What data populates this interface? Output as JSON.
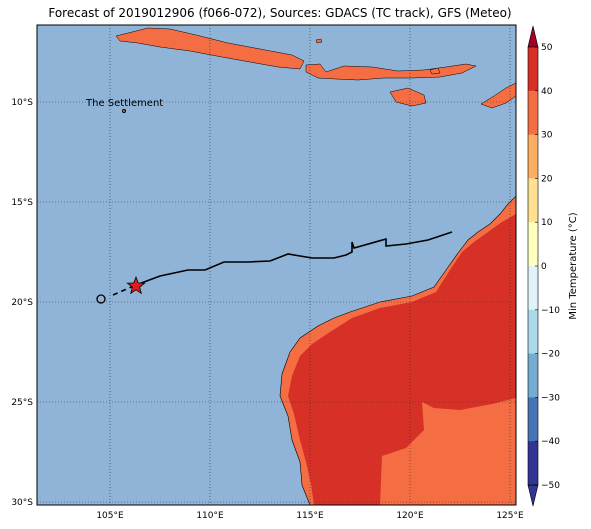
{
  "title": "Forecast of 2019012906 (f066-072), Sources: GDACS (TC track), GFS (Meteo)",
  "map": {
    "lon_ticks": [
      "105°E",
      "110°E",
      "115°E",
      "120°E",
      "125°E"
    ],
    "lat_ticks": [
      "10°S",
      "15°S",
      "20°S",
      "25°S",
      "30°S"
    ],
    "place_label": "The Settlement",
    "ocean_color": "#8fb4d8",
    "land_warm_color": "#f46d43",
    "land_hot_color": "#d73027",
    "track_color": "#000000",
    "storm_marker_color": "#e41a1c"
  },
  "colorbar": {
    "title": "Min Temperature (°C)",
    "labels": [
      "50",
      "40",
      "30",
      "20",
      "10",
      "0",
      "−10",
      "−20",
      "−30",
      "−40",
      "−50"
    ],
    "colors": [
      "#a50026",
      "#d73027",
      "#f46d43",
      "#fdae61",
      "#fee090",
      "#ffffbf",
      "#e0f3f8",
      "#abd9e9",
      "#74add1",
      "#4575b4",
      "#313695"
    ]
  }
}
